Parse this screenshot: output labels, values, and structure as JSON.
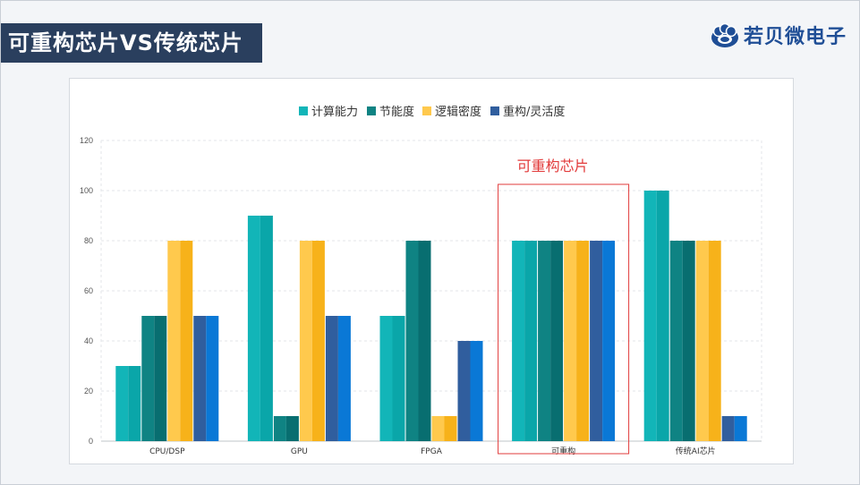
{
  "slide": {
    "title": "可重构芯片VS传统芯片",
    "logo_text": "若贝微电子"
  },
  "annotation": {
    "label": "可重构芯片",
    "category": "可重构",
    "color": "#e23b3b"
  },
  "chart_data": {
    "type": "bar",
    "title": "",
    "xlabel": "",
    "ylabel": "",
    "ylim": [
      0,
      120
    ],
    "yticks": [
      0,
      20,
      40,
      60,
      80,
      100,
      120
    ],
    "grid": true,
    "legend_position": "top-center",
    "categories": [
      "CPU/DSP",
      "GPU",
      "FPGA",
      "可重构",
      "传统AI芯片"
    ],
    "series": [
      {
        "name": "计算能力",
        "values": [
          30,
          90,
          50,
          80,
          100
        ],
        "color": "#12b5b8",
        "color_light": "#0aa6a9"
      },
      {
        "name": "节能度",
        "values": [
          50,
          10,
          80,
          80,
          80
        ],
        "color": "#0f8383",
        "color_light": "#086e70"
      },
      {
        "name": "逻辑密度",
        "values": [
          80,
          80,
          10,
          80,
          80
        ],
        "color": "#ffc94d",
        "color_light": "#f7b21a"
      },
      {
        "name": "重构/灵活度",
        "values": [
          50,
          50,
          40,
          80,
          10
        ],
        "color": "#305e9e",
        "color_light": "#0a78d6"
      }
    ]
  }
}
